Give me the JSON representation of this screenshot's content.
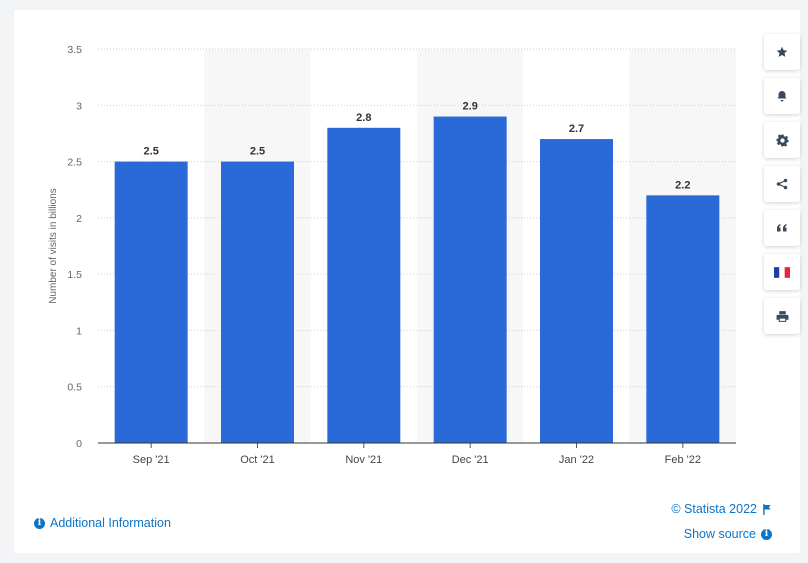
{
  "chart_data": {
    "type": "bar",
    "categories": [
      "Sep '21",
      "Oct '21",
      "Nov '21",
      "Dec '21",
      "Jan '22",
      "Feb '22"
    ],
    "values": [
      2.5,
      2.5,
      2.8,
      2.9,
      2.7,
      2.2
    ],
    "value_labels": [
      "2.5",
      "2.5",
      "2.8",
      "2.9",
      "2.7",
      "2.2"
    ],
    "ylabel": "Number of visits in billions",
    "ylim": [
      0,
      3.5
    ],
    "yticks": [
      0,
      0.5,
      1,
      1.5,
      2,
      2.5,
      3,
      3.5
    ],
    "ytick_labels": [
      "0",
      "0.5",
      "1",
      "1.5",
      "2",
      "2.5",
      "3",
      "3.5"
    ],
    "grid": true,
    "bar_color": "#2a6ad8",
    "alt_band_color": "#f7f7f7"
  },
  "toolbar": {
    "buttons": [
      {
        "icon": "star-icon"
      },
      {
        "icon": "bell-icon"
      },
      {
        "icon": "gear-icon"
      },
      {
        "icon": "share-icon"
      },
      {
        "icon": "quote-icon"
      },
      {
        "icon": "french-flag-icon"
      },
      {
        "icon": "print-icon"
      }
    ]
  },
  "footer": {
    "additional_info": "Additional Information",
    "copyright": "© Statista 2022",
    "show_source": "Show source"
  },
  "colors": {
    "link": "#0b75c9"
  }
}
